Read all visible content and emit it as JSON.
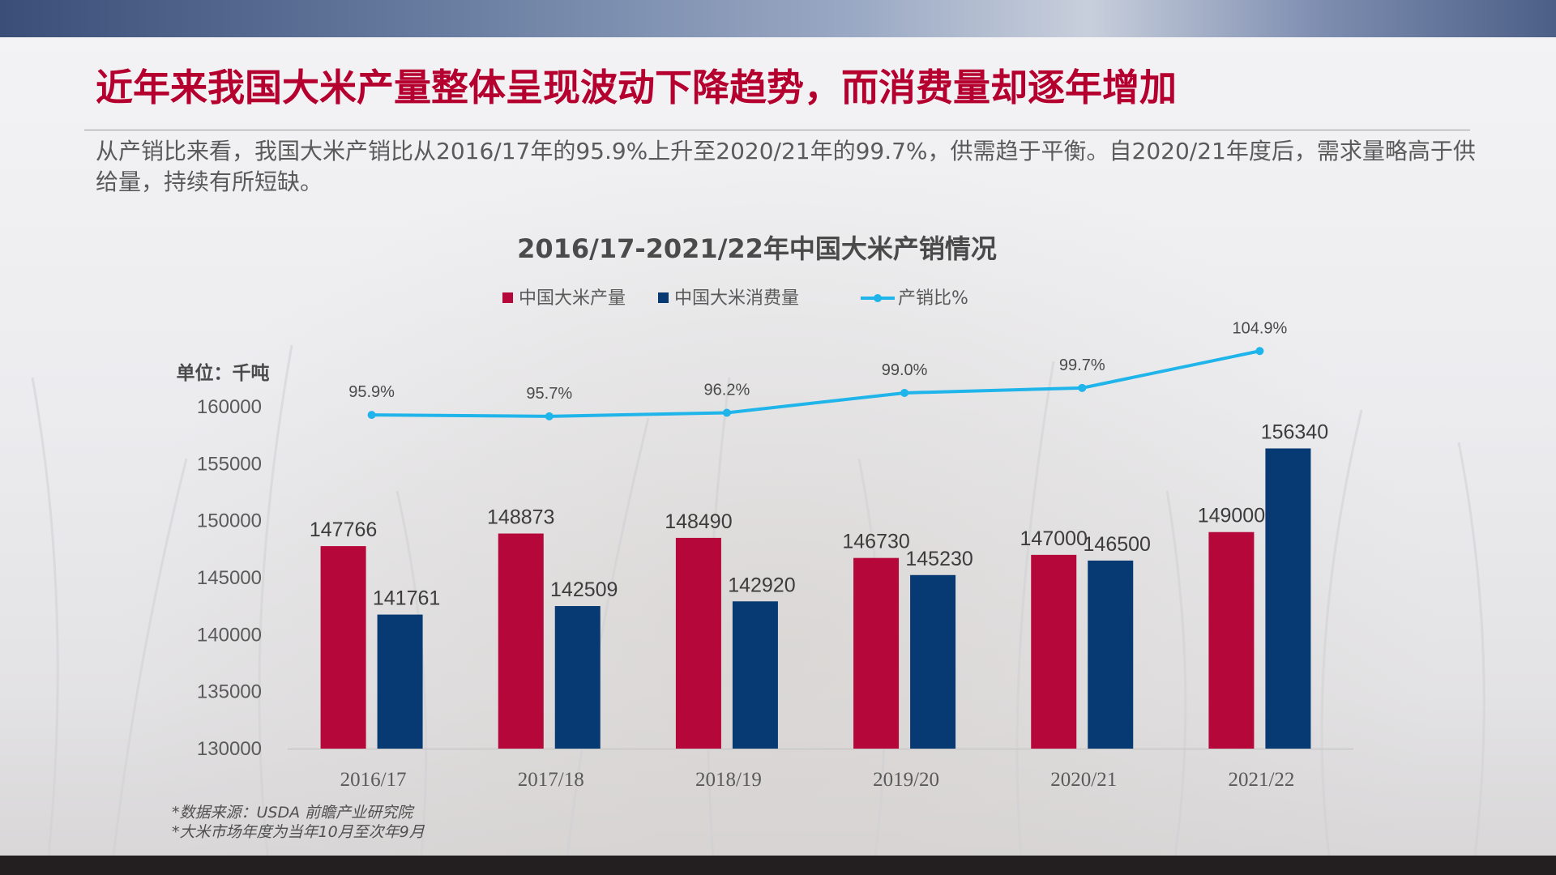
{
  "slide": {
    "headline": "近年来我国大米产量整体呈现波动下降趋势，而消费量却逐年增加",
    "summary": "从产销比来看，我国大米产销比从2016/17年的95.9%上升至2020/21年的99.7%，供需趋于平衡。自2020/21年度后，需求量略高于供给量，持续有所短缺。",
    "footnotes": [
      "*数据来源：USDA 前瞻产业研究院",
      "*大米市场年度为当年10月至次年9月"
    ]
  },
  "colors": {
    "headline": "#b5002f",
    "production": "#b5073a",
    "consumption": "#073a73",
    "ratio": "#1fb4ea"
  },
  "chart_data": {
    "type": "bar",
    "title": "2016/17-2021/22年中国大米产销情况",
    "unit_label": "单位：千吨",
    "categories": [
      "2016/17",
      "2017/18",
      "2018/19",
      "2019/20",
      "2020/21",
      "2021/22"
    ],
    "ylim": [
      130000,
      160000
    ],
    "yticks": [
      "130000",
      "135000",
      "140000",
      "145000",
      "150000",
      "155000",
      "160000"
    ],
    "legend_position": "top-center",
    "grid": false,
    "series": [
      {
        "name": "中国大米产量",
        "type": "bar",
        "values": [
          147766,
          148873,
          148490,
          146730,
          147000,
          149000
        ]
      },
      {
        "name": "中国大米消费量",
        "type": "bar",
        "values": [
          141761,
          142509,
          142920,
          145230,
          146500,
          156340
        ]
      },
      {
        "name": "产销比%",
        "type": "line",
        "values": [
          95.9,
          95.7,
          96.2,
          99.0,
          99.7,
          104.9
        ],
        "labels": [
          "95.9%",
          "95.7%",
          "96.2%",
          "99.0%",
          "99.7%",
          "104.9%"
        ]
      }
    ]
  }
}
